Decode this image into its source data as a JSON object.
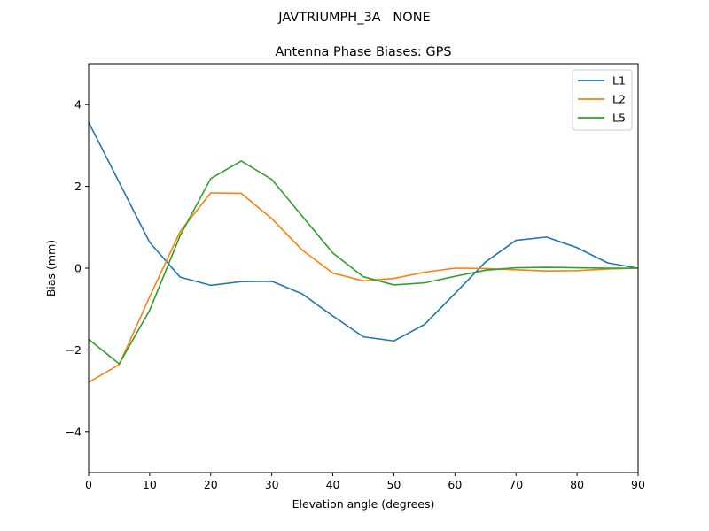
{
  "figure": {
    "suptitle": "JAVTRIUMPH_3A   NONE"
  },
  "chart_data": {
    "type": "line",
    "title": "Antenna Phase Biases: GPS",
    "xlabel": "Elevation angle (degrees)",
    "ylabel": "Bias (mm)",
    "xlim": [
      0,
      90
    ],
    "ylim": [
      -5,
      5
    ],
    "xticks": [
      0,
      10,
      20,
      30,
      40,
      50,
      60,
      70,
      80,
      90
    ],
    "yticks": [
      -4,
      -2,
      0,
      2,
      4
    ],
    "ytick_labels": [
      "−4",
      "−2",
      "0",
      "2",
      "4"
    ],
    "grid": false,
    "legend_position": "top-right",
    "x": [
      0,
      5,
      10,
      15,
      20,
      25,
      30,
      35,
      40,
      45,
      50,
      55,
      60,
      65,
      70,
      75,
      80,
      85,
      90
    ],
    "series": [
      {
        "name": "L1",
        "color": "#1f77b4",
        "values": [
          3.57,
          2.1,
          0.63,
          -0.22,
          -0.42,
          -0.33,
          -0.32,
          -0.63,
          -1.17,
          -1.68,
          -1.78,
          -1.38,
          -0.62,
          0.15,
          0.68,
          0.76,
          0.5,
          0.13,
          0.0
        ]
      },
      {
        "name": "L2",
        "color": "#ff7f0e",
        "values": [
          -2.79,
          -2.36,
          -0.7,
          0.9,
          1.84,
          1.83,
          1.21,
          0.44,
          -0.12,
          -0.31,
          -0.25,
          -0.1,
          0.0,
          -0.01,
          -0.04,
          -0.07,
          -0.06,
          -0.02,
          0.0
        ]
      },
      {
        "name": "L5",
        "color": "#2ca02c",
        "values": [
          -1.74,
          -2.34,
          -1.03,
          0.8,
          2.19,
          2.62,
          2.17,
          1.27,
          0.37,
          -0.21,
          -0.41,
          -0.36,
          -0.2,
          -0.05,
          0.01,
          0.02,
          0.01,
          0.0,
          0.0
        ]
      }
    ]
  }
}
